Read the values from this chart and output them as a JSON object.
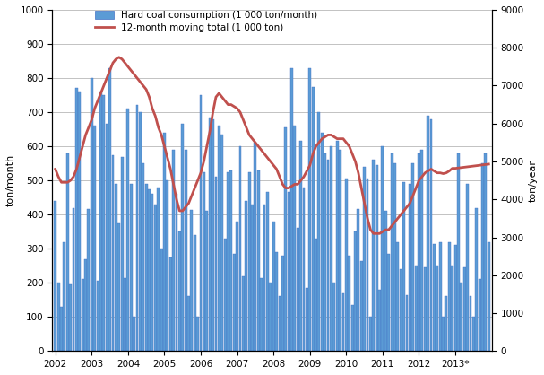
{
  "bar_values": [
    440,
    200,
    130,
    320,
    580,
    195,
    420,
    770,
    760,
    210,
    270,
    415,
    800,
    660,
    205,
    760,
    750,
    665,
    830,
    575,
    490,
    375,
    570,
    215,
    710,
    490,
    100,
    720,
    700,
    550,
    490,
    475,
    460,
    430,
    480,
    300,
    640,
    500,
    275,
    590,
    460,
    350,
    665,
    590,
    160,
    413,
    340,
    100,
    750,
    525,
    410,
    685,
    680,
    510,
    660,
    635,
    330,
    525,
    530,
    285,
    380,
    600,
    220,
    440,
    525,
    430,
    610,
    530,
    215,
    430,
    465,
    200,
    380,
    290,
    160,
    280,
    655,
    465,
    830,
    660,
    360,
    615,
    480,
    185,
    830,
    775,
    330,
    700,
    640,
    580,
    560,
    600,
    200,
    615,
    590,
    170,
    506,
    280,
    135,
    350,
    415,
    265,
    540,
    505,
    100,
    560,
    545,
    180,
    600,
    410,
    285,
    580,
    550,
    320,
    240,
    495,
    165,
    490,
    550,
    250,
    580,
    590,
    245,
    690,
    680,
    315,
    250,
    320,
    100,
    160,
    320,
    250,
    310,
    580,
    200,
    245,
    490,
    160,
    100,
    420,
    210,
    550,
    580,
    320
  ],
  "moving_avg": [
    4800,
    4600,
    4450,
    4450,
    4450,
    4500,
    4600,
    4800,
    5100,
    5400,
    5700,
    5900,
    6100,
    6400,
    6600,
    6800,
    7000,
    7200,
    7400,
    7600,
    7700,
    7750,
    7700,
    7600,
    7500,
    7400,
    7300,
    7200,
    7100,
    7000,
    6900,
    6700,
    6400,
    6200,
    5900,
    5700,
    5400,
    5100,
    4800,
    4400,
    4000,
    3700,
    3700,
    3800,
    3900,
    4100,
    4300,
    4500,
    4700,
    5000,
    5400,
    5800,
    6300,
    6700,
    6800,
    6700,
    6600,
    6500,
    6500,
    6450,
    6400,
    6300,
    6100,
    5900,
    5700,
    5600,
    5500,
    5400,
    5300,
    5200,
    5100,
    5000,
    4900,
    4800,
    4600,
    4400,
    4300,
    4300,
    4350,
    4400,
    4400,
    4500,
    4600,
    4750,
    4900,
    5200,
    5400,
    5500,
    5600,
    5650,
    5700,
    5700,
    5650,
    5600,
    5600,
    5600,
    5500,
    5400,
    5200,
    5000,
    4700,
    4300,
    3900,
    3500,
    3200,
    3100,
    3100,
    3100,
    3150,
    3200,
    3200,
    3300,
    3400,
    3500,
    3600,
    3700,
    3800,
    3900,
    4100,
    4300,
    4500,
    4600,
    4700,
    4750,
    4800,
    4750,
    4700,
    4700,
    4680,
    4700,
    4750,
    4820,
    4820,
    4830,
    4840,
    4850,
    4860,
    4870,
    4880,
    4890,
    4900,
    4910,
    4920,
    4930
  ],
  "bar_color": "#5B9BD5",
  "bar_edge_color": "#4472C4",
  "line_color": "#C0504D",
  "left_ylim": [
    0,
    1000
  ],
  "right_ylim": [
    0,
    9000
  ],
  "left_yticks": [
    0,
    100,
    200,
    300,
    400,
    500,
    600,
    700,
    800,
    900,
    1000
  ],
  "right_yticks": [
    0,
    1000,
    2000,
    3000,
    4000,
    5000,
    6000,
    7000,
    8000,
    9000
  ],
  "xtick_labels": [
    "2002",
    "2003",
    "2004",
    "2005",
    "2006",
    "2007",
    "2008",
    "2009",
    "2010",
    "2011",
    "2012",
    "2013*"
  ],
  "ylabel_left": "ton/month",
  "ylabel_right": "ton/year",
  "legend_bar_label": "Hard coal consumption (1 000 ton/month)",
  "legend_line_label": "12-month moving total (1 000 ton)",
  "grid_color": "#AAAAAA",
  "background_color": "#FFFFFF"
}
